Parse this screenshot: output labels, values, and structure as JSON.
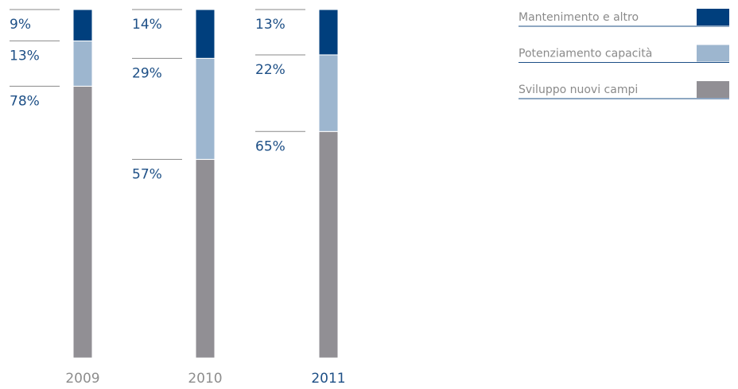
{
  "chart_data": {
    "type": "bar",
    "stacked": true,
    "categories": [
      "2009",
      "2010",
      "2011"
    ],
    "ylim": [
      0,
      100
    ],
    "series": [
      {
        "name": "Sviluppo nuovi campi",
        "color": "#918f94",
        "values": [
          78,
          57,
          65
        ],
        "value_labels": [
          "78%",
          "57%",
          "65%"
        ]
      },
      {
        "name": "Potenziamento capacità",
        "color": "#9db6cf",
        "values": [
          13,
          29,
          22
        ],
        "value_labels": [
          "13%",
          "29%",
          "22%"
        ]
      },
      {
        "name": "Mantenimento e altro",
        "color": "#003f7d",
        "values": [
          9,
          14,
          13
        ],
        "value_labels": [
          "9%",
          "14%",
          "13%"
        ]
      }
    ]
  }
}
